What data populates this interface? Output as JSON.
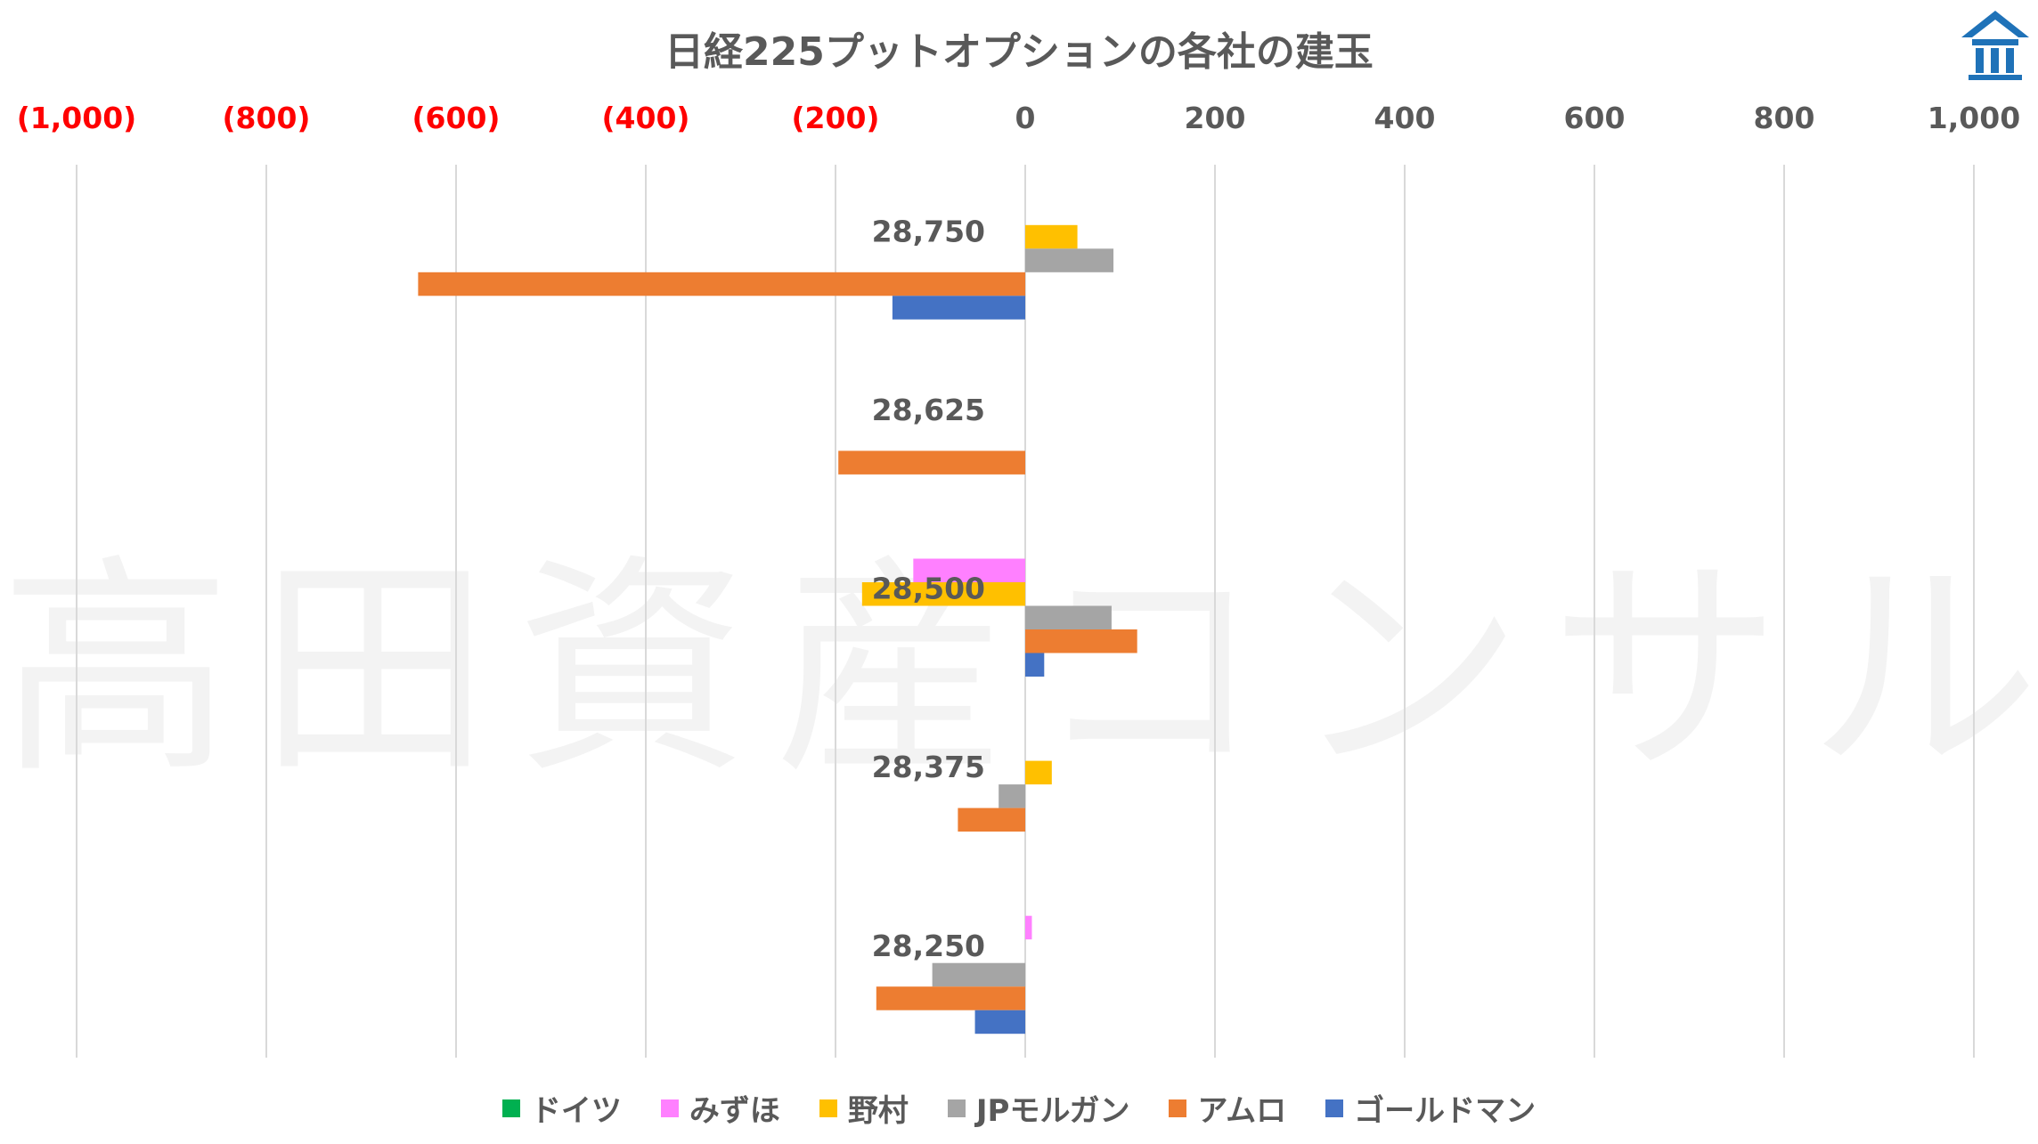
{
  "watermark": "高田資産コンサル",
  "chart_data": {
    "type": "bar",
    "orientation": "horizontal",
    "title": "日経225プットオプションの各社の建玉",
    "categories": [
      "28,750",
      "28,625",
      "28,500",
      "28,375",
      "28,250"
    ],
    "xlim": [
      -1000,
      1000
    ],
    "xticks": [
      -1000,
      -800,
      -600,
      -400,
      -200,
      0,
      200,
      400,
      600,
      800,
      1000
    ],
    "xtick_labels": [
      "(1,000)",
      "(800)",
      "(600)",
      "(400)",
      "(200)",
      "0",
      "200",
      "400",
      "600",
      "800",
      "1,000"
    ],
    "negative_tick_color": "#FF0000",
    "positive_tick_color": "#595959",
    "grid": true,
    "legend_position": "bottom",
    "series": [
      {
        "name": "ドイツ",
        "color": "#00B050",
        "values": [
          0,
          0,
          0,
          0,
          0
        ]
      },
      {
        "name": "みずほ",
        "color": "#FF80FF",
        "values": [
          0,
          0,
          -118,
          0,
          7
        ]
      },
      {
        "name": "野村",
        "color": "#FFC000",
        "values": [
          55,
          0,
          -172,
          28,
          0
        ]
      },
      {
        "name": "JPモルガン",
        "color": "#A5A5A5",
        "values": [
          93,
          0,
          91,
          -28,
          -98
        ]
      },
      {
        "name": "アムロ",
        "color": "#ED7D31",
        "values": [
          -640,
          -197,
          118,
          -71,
          -157
        ]
      },
      {
        "name": "ゴールドマン",
        "color": "#4472C4",
        "values": [
          -140,
          0,
          20,
          0,
          -53
        ]
      }
    ]
  }
}
